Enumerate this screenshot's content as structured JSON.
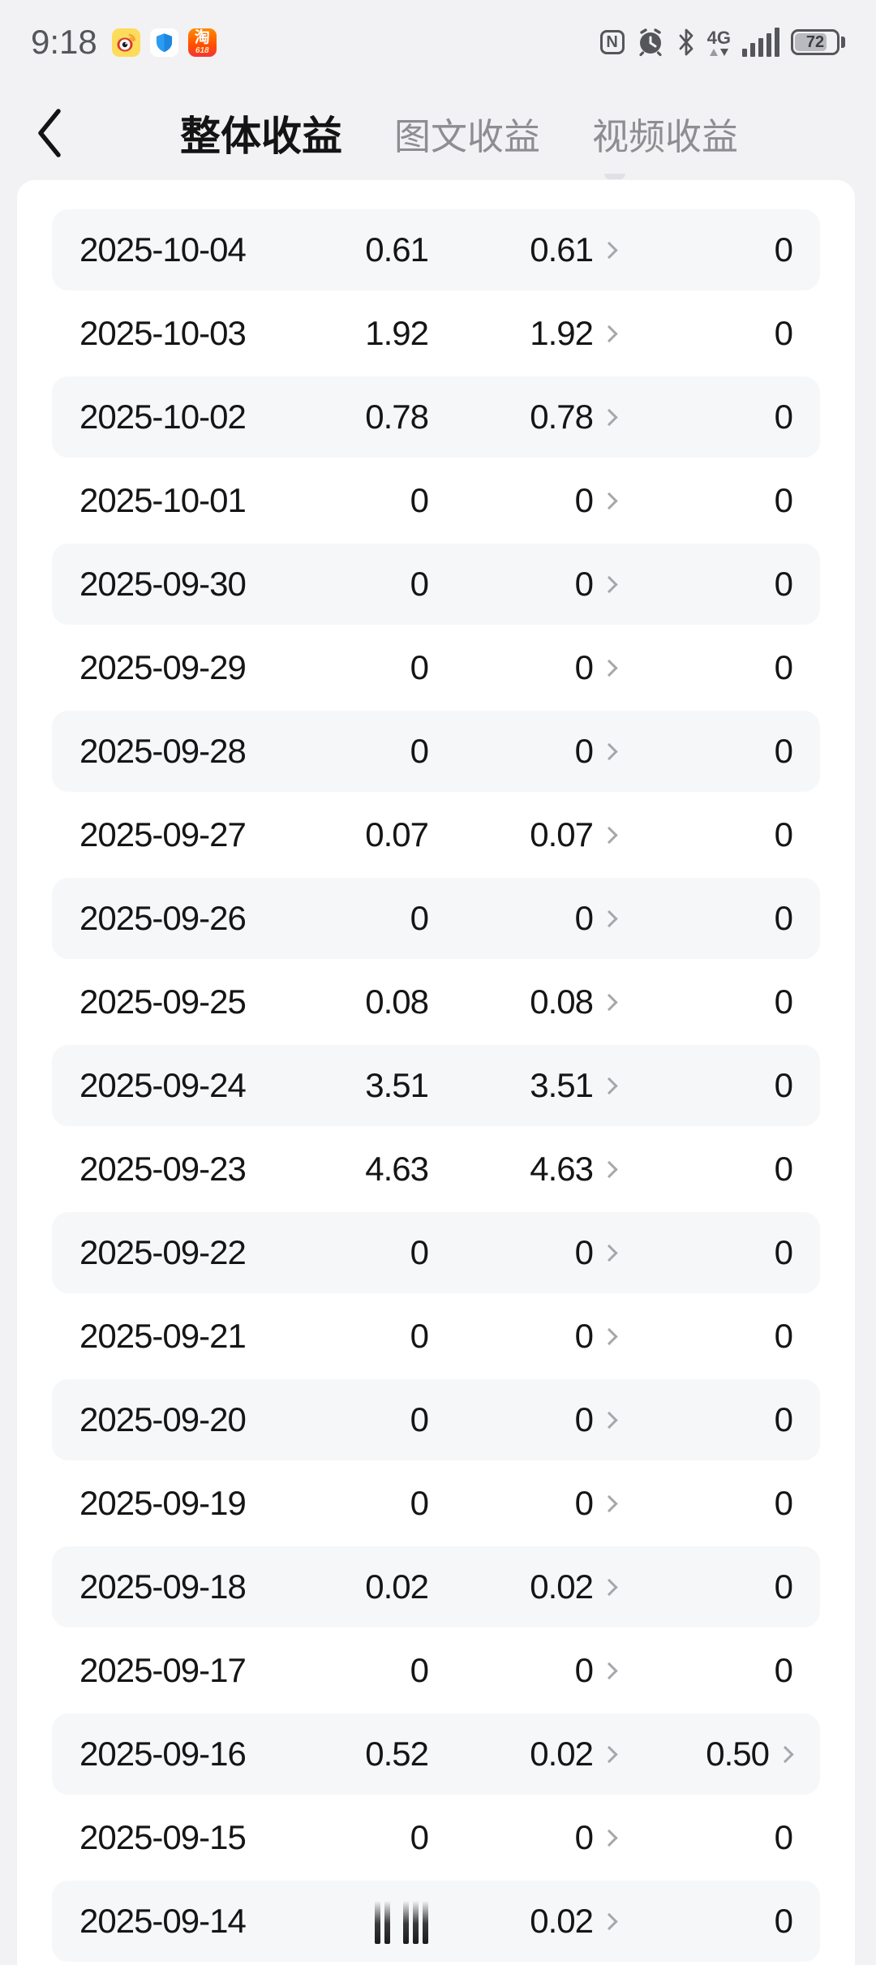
{
  "status_bar": {
    "time": "9:18",
    "notification_icons": [
      {
        "name": "weibo-app-icon"
      },
      {
        "name": "security-shield-app-icon"
      },
      {
        "name": "taobao-app-icon",
        "label": "淘",
        "badge": "618"
      }
    ],
    "system_icons": {
      "nfc_label": "N",
      "network_label": "4G",
      "battery_percent": "72"
    }
  },
  "header": {
    "tabs": [
      {
        "label": "整体收益",
        "active": true
      },
      {
        "label": "图文收益",
        "active": false
      },
      {
        "label": "视频收益",
        "active": false
      }
    ]
  },
  "table": {
    "rows": [
      {
        "date": "2025-10-04",
        "total": "0.61",
        "text": "0.61",
        "video": "0",
        "video_arrow": false
      },
      {
        "date": "2025-10-03",
        "total": "1.92",
        "text": "1.92",
        "video": "0",
        "video_arrow": false
      },
      {
        "date": "2025-10-02",
        "total": "0.78",
        "text": "0.78",
        "video": "0",
        "video_arrow": false
      },
      {
        "date": "2025-10-01",
        "total": "0",
        "text": "0",
        "video": "0",
        "video_arrow": false
      },
      {
        "date": "2025-09-30",
        "total": "0",
        "text": "0",
        "video": "0",
        "video_arrow": false
      },
      {
        "date": "2025-09-29",
        "total": "0",
        "text": "0",
        "video": "0",
        "video_arrow": false
      },
      {
        "date": "2025-09-28",
        "total": "0",
        "text": "0",
        "video": "0",
        "video_arrow": false
      },
      {
        "date": "2025-09-27",
        "total": "0.07",
        "text": "0.07",
        "video": "0",
        "video_arrow": false
      },
      {
        "date": "2025-09-26",
        "total": "0",
        "text": "0",
        "video": "0",
        "video_arrow": false
      },
      {
        "date": "2025-09-25",
        "total": "0.08",
        "text": "0.08",
        "video": "0",
        "video_arrow": false
      },
      {
        "date": "2025-09-24",
        "total": "3.51",
        "text": "3.51",
        "video": "0",
        "video_arrow": false
      },
      {
        "date": "2025-09-23",
        "total": "4.63",
        "text": "4.63",
        "video": "0",
        "video_arrow": false
      },
      {
        "date": "2025-09-22",
        "total": "0",
        "text": "0",
        "video": "0",
        "video_arrow": false
      },
      {
        "date": "2025-09-21",
        "total": "0",
        "text": "0",
        "video": "0",
        "video_arrow": false
      },
      {
        "date": "2025-09-20",
        "total": "0",
        "text": "0",
        "video": "0",
        "video_arrow": false
      },
      {
        "date": "2025-09-19",
        "total": "0",
        "text": "0",
        "video": "0",
        "video_arrow": false
      },
      {
        "date": "2025-09-18",
        "total": "0.02",
        "text": "0.02",
        "video": "0",
        "video_arrow": false
      },
      {
        "date": "2025-09-17",
        "total": "0",
        "text": "0",
        "video": "0",
        "video_arrow": false
      },
      {
        "date": "2025-09-16",
        "total": "0.52",
        "text": "0.02",
        "video": "0.50",
        "video_arrow": true
      },
      {
        "date": "2025-09-15",
        "total": "0",
        "text": "0",
        "video": "0",
        "video_arrow": false
      },
      {
        "date": "2025-09-14",
        "total": "",
        "total_loading": true,
        "text": "0.02",
        "video": "0",
        "video_arrow": false
      }
    ]
  },
  "colors": {
    "page_bg": "#f2f2f4",
    "card_bg": "#ffffff",
    "row_alt_bg": "#f6f7f9",
    "text_primary": "#151517",
    "text_secondary": "#8d8d92",
    "chevron": "#a6a6ab",
    "status_icon": "#55565a",
    "weibo_yellow": "#fcdc5a",
    "shield_blue": "#2b9cf2",
    "taobao_orange": "#ff5a00"
  }
}
